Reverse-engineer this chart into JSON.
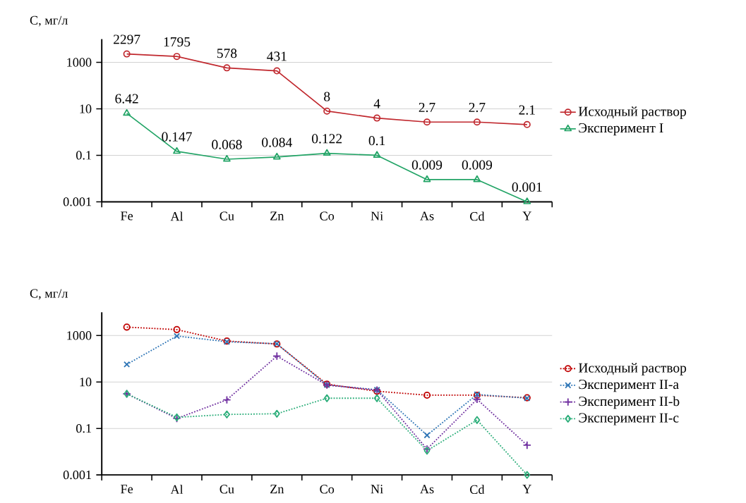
{
  "chart_data": [
    {
      "type": "line",
      "ylabel": "С, мг/л",
      "categories": [
        "Fe",
        "Al",
        "Cu",
        "Zn",
        "Co",
        "Ni",
        "As",
        "Cd",
        "Y"
      ],
      "log": "y",
      "ylim": [
        0.001,
        10000
      ],
      "yticks": [
        0.001,
        0.1,
        10,
        1000
      ],
      "grid": "y",
      "legend": "right",
      "data_labels": true,
      "series": [
        {
          "name": "Исходный раствор",
          "color": "#c0272d",
          "marker": "circle",
          "line_style": "solid",
          "values": [
            2297,
            1795,
            578,
            431,
            8,
            4,
            2.7,
            2.7,
            2.1
          ]
        },
        {
          "name": "Эксперимент I",
          "color": "#22a466",
          "marker": "triangle",
          "line_style": "solid",
          "values": [
            6.42,
            0.147,
            0.068,
            0.084,
            0.122,
            0.1,
            0.009,
            0.009,
            0.001
          ]
        }
      ]
    },
    {
      "type": "line",
      "ylabel": "С, мг/л",
      "categories": [
        "Fe",
        "Al",
        "Cu",
        "Zn",
        "Co",
        "Ni",
        "As",
        "Cd",
        "Y"
      ],
      "log": "y",
      "ylim": [
        0.001,
        10000
      ],
      "yticks": [
        0.001,
        0.1,
        10,
        1000
      ],
      "grid": "y",
      "legend": "right",
      "series": [
        {
          "name": "Исходный раствор",
          "color": "#c00000",
          "marker": "circle",
          "line_style": "dotted",
          "values": [
            2297,
            1795,
            578,
            431,
            8,
            4,
            2.7,
            2.7,
            2.1
          ]
        },
        {
          "name": "Эксперимент II-a",
          "color": "#2e75b6",
          "marker": "cross",
          "line_style": "dotted",
          "values": [
            57,
            950,
            540,
            440,
            7.4,
            4.6,
            0.051,
            2.9,
            2.0
          ]
        },
        {
          "name": "Эксперимент II-b",
          "color": "#7030a0",
          "marker": "plus",
          "line_style": "dotted",
          "values": [
            3.1,
            0.27,
            1.7,
            130,
            7.4,
            4.5,
            0.013,
            1.8,
            0.019
          ]
        },
        {
          "name": "Эксперимент II-c",
          "color": "#2cae7a",
          "marker": "diamond",
          "line_style": "dotted",
          "values": [
            3.1,
            0.3,
            0.4,
            0.43,
            2.0,
            2.0,
            0.011,
            0.23,
            0.001
          ]
        }
      ]
    }
  ]
}
